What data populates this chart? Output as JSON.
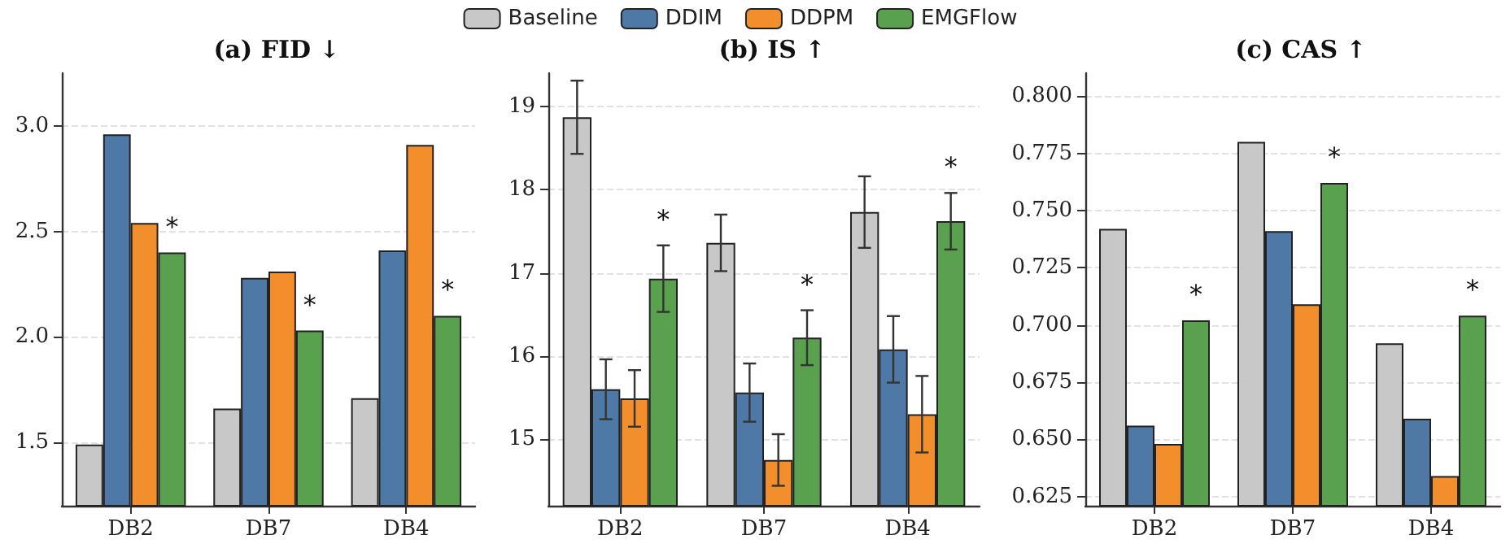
{
  "chart_data": [
    {
      "type": "bar",
      "title": "(a) FID ↓",
      "categories": [
        "DB2",
        "DB7",
        "DB4"
      ],
      "series": [
        {
          "color": "#c8c8c8",
          "values": [
            1.49,
            1.66,
            1.71
          ]
        },
        {
          "color": "#4e79a7",
          "values": [
            2.96,
            2.28,
            2.41
          ]
        },
        {
          "color": "#f28e2b",
          "values": [
            2.54,
            2.31,
            2.91
          ]
        },
        {
          "color": "#59a14f",
          "values": [
            2.4,
            2.03,
            2.1
          ]
        }
      ],
      "ylim": [
        1.2,
        3.25
      ],
      "yticks": [
        {
          "value": 1.5,
          "label": "1.5"
        },
        {
          "value": 2,
          "label": "2.0"
        },
        {
          "value": 2.5,
          "label": "2.5"
        },
        {
          "value": 3,
          "label": "3.0"
        }
      ],
      "grid": "y",
      "legend": false,
      "annotations": [
        "*",
        "*",
        "*"
      ]
    },
    {
      "type": "bar",
      "title": "(b) IS ↑",
      "categories": [
        "DB2",
        "DB7",
        "DB4"
      ],
      "series": [
        {
          "name": "Baseline",
          "color": "#c8c8c8",
          "values": [
            18.87,
            17.36,
            17.73
          ],
          "errors": [
            0.44,
            0.34,
            0.43
          ]
        },
        {
          "name": "DDIM",
          "color": "#4e79a7",
          "values": [
            15.6,
            15.56,
            16.08
          ],
          "errors": [
            0.36,
            0.35,
            0.4
          ]
        },
        {
          "name": "DDPM",
          "color": "#f28e2b",
          "values": [
            15.49,
            14.75,
            15.3
          ],
          "errors": [
            0.34,
            0.31,
            0.46
          ]
        },
        {
          "name": "EMGFlow",
          "color": "#59a14f",
          "values": [
            16.93,
            16.22,
            17.62
          ],
          "errors": [
            0.4,
            0.33,
            0.34
          ]
        }
      ],
      "ylim": [
        14.2,
        19.4
      ],
      "yticks": [
        15,
        16,
        17,
        18,
        19
      ],
      "grid": "y",
      "legend": "top",
      "annotations": [
        "*",
        "*",
        "*"
      ]
    },
    {
      "type": "bar",
      "title": "(c) CAS ↑",
      "categories": [
        "DB2",
        "DB7",
        "DB4"
      ],
      "series": [
        {
          "color": "#c8c8c8",
          "values": [
            0.742,
            0.78,
            0.692
          ]
        },
        {
          "color": "#4e79a7",
          "values": [
            0.656,
            0.741,
            0.659
          ]
        },
        {
          "color": "#f28e2b",
          "values": [
            0.648,
            0.709,
            0.634
          ]
        },
        {
          "color": "#59a14f",
          "values": [
            0.702,
            0.762,
            0.704
          ]
        }
      ],
      "ylim": [
        0.621,
        0.81
      ],
      "yticks": [
        {
          "value": 0.625,
          "label": "0.625"
        },
        {
          "value": 0.65,
          "label": "0.650"
        },
        {
          "value": 0.675,
          "label": "0.675"
        },
        {
          "value": 0.7,
          "label": "0.700"
        },
        {
          "value": 0.725,
          "label": "0.725"
        },
        {
          "value": 0.75,
          "label": "0.750"
        },
        {
          "value": 0.775,
          "label": "0.775"
        },
        {
          "value": 0.8,
          "label": "0.800"
        }
      ],
      "grid": "y",
      "legend": false,
      "annotations": [
        "*",
        "*",
        "*"
      ]
    }
  ]
}
